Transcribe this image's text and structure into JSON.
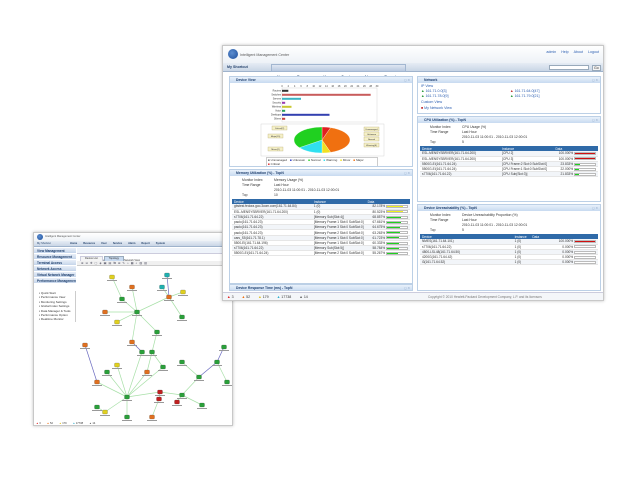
{
  "main_window": {
    "app_title": "Intelligent Management Center",
    "user_links": [
      "admin",
      "Help",
      "About",
      "Logout"
    ],
    "shortcut": "My Shortcut",
    "search_button": "Go",
    "nav_tabs": [
      "Home",
      "Resource",
      "User",
      "Service",
      "Alarm",
      "Report",
      "System"
    ],
    "device_view": {
      "title": "Device View",
      "chart_data": {
        "type": "bar",
        "orientation": "horizontal",
        "categories": [
          "Routers",
          "Switches",
          "Servers",
          "Security",
          "Wireless",
          "Voice",
          "Desktops",
          "Others"
        ],
        "values": [
          2,
          28,
          6,
          1,
          3,
          1,
          15,
          1
        ],
        "colors": [
          "#333333",
          "#c85c5c",
          "#3bb3c3",
          "#9a3bb0",
          "#c8c832",
          "#2aa05a",
          "#3340b0",
          "#c84040"
        ],
        "xlim": [
          0,
          30
        ],
        "xticks": [
          0,
          2,
          4,
          6,
          8,
          10,
          12,
          14,
          16,
          18,
          20,
          22,
          24,
          26,
          28,
          30
        ]
      },
      "pie_data": {
        "type": "pie",
        "labels": [
          "Critical",
          "Major",
          "Minor",
          "Warning",
          "Normal"
        ],
        "values": [
          5,
          40,
          5,
          15,
          35
        ],
        "colors": [
          "#e02020",
          "#f07010",
          "#f0e020",
          "#30e0f0",
          "#20d020"
        ],
        "callouts": [
          "Critical(2)",
          "Major(15)",
          "Minor(2)",
          "Unmanaged",
          "Unknown",
          "Normal",
          "Warning(6)"
        ]
      },
      "legend": [
        {
          "label": "Unmanaged",
          "color": "#666666"
        },
        {
          "label": "Unknown",
          "color": "#2030c0"
        },
        {
          "label": "Normal",
          "color": "#20d020"
        },
        {
          "label": "Warning",
          "color": "#30e0f0"
        },
        {
          "label": "Minor",
          "color": "#f0e020"
        },
        {
          "label": "Major",
          "color": "#f07010"
        },
        {
          "label": "Critical",
          "color": "#e02020"
        }
      ]
    },
    "memory": {
      "title": "Memory Utilization (%) - TopN",
      "monitor_index_label": "Monitor Index",
      "monitor_index": "Memory Usage (%)",
      "time_range_label": "Time Range",
      "time_range": "Last Hour",
      "time_span": "2010-11-03 11:00:01 - 2010-11-03 12:00:01",
      "top_label": "Top",
      "top": "10",
      "columns": [
        "Device",
        "Instance",
        "Data"
      ],
      "rows": [
        {
          "device": "gbstest.fedora.goo.3com.com(161.71.64.84)",
          "instance": "1 (0)",
          "value": "82.178%",
          "pct": 82.178,
          "color": "#f0f020"
        },
        {
          "device": "ESL-MENSYSBRVER(161.71.64.200)",
          "instance": "1 (0)",
          "value": "80.523%",
          "pct": 80.523,
          "color": "#f0f020"
        },
        {
          "device": "s7706(161.71.64.22)",
          "instance": "[Memory Sub(Slot:4)]",
          "value": "68.857%",
          "pct": 68.857,
          "color": "#20d020"
        },
        {
          "device": "paolo(161.71.64.23)",
          "instance": "[Memory Frame:1 Slot:0 SubSlot:0]",
          "value": "67.661%",
          "pct": 67.661,
          "color": "#20d020"
        },
        {
          "device": "paolo(161.71.64.23)",
          "instance": "[Memory Frame:3 Slot:0 SubSlot:0]",
          "value": "64.675%",
          "pct": 64.675,
          "color": "#20d020"
        },
        {
          "device": "paolo(161.71.64.23)",
          "instance": "[Memory Frame:2 Slot:0 SubSlot:0]",
          "value": "63.263%",
          "pct": 63.263,
          "color": "#20d020"
        },
        {
          "device": "cars_S5(161.71.78.1)",
          "instance": "[Memory Frame:1 Slot:0 SubSlot:0]",
          "value": "61.723%",
          "pct": 61.723,
          "color": "#20d020"
        },
        {
          "device": "5500-EI(161.71.64.196)",
          "instance": "[Memory Frame:1 Slot:0 SubSlot:0]",
          "value": "60.333%",
          "pct": 60.333,
          "color": "#20d020"
        },
        {
          "device": "s7706(161.71.64.22)",
          "instance": "[Memory Sub(Slot:5)]",
          "value": "58.784%",
          "pct": 58.784,
          "color": "#20d020"
        },
        {
          "device": "5500G-EI(161.71.64.24)",
          "instance": "[Memory Frame:2 Slot:0 SubSlot:0]",
          "value": "55.267%",
          "pct": 55.267,
          "color": "#20d020"
        }
      ]
    },
    "response_title": "Device Response Time (ms) - TopN",
    "network": {
      "title": "Network",
      "ip_view": "IP View",
      "subnets": [
        "161.71.0.0[3]",
        "161.71.64.0[47]",
        "161.71.78.0[9]",
        "161.71.79.0[21]"
      ],
      "custom_view": "Custom View",
      "my_view": "My Network View"
    },
    "cpu": {
      "title": "CPU Utilization (%) - TopN",
      "monitor_index_label": "Monitor Index",
      "monitor_index": "CPU Usage (%)",
      "time_range_label": "Time Range",
      "time_range": "Last Hour",
      "time_span": "2010-11-03 11:00:01 - 2010-11-03 12:00:01",
      "top_label": "Top",
      "top": "5",
      "columns": [
        "Device",
        "Instance",
        "Data"
      ],
      "rows": [
        {
          "device": "ESL-MENSYSBRVER(161.71.64.200)",
          "instance": "[CPU 2]",
          "value": "100.000%",
          "pct": 100,
          "color": "#d01010"
        },
        {
          "device": "ESL-MENSYSBRVER(161.71.64.200)",
          "instance": "[CPU 3]",
          "value": "100.000%",
          "pct": 100,
          "color": "#d01010"
        },
        {
          "device": "5500G-EI(161.71.64.24)",
          "instance": "[CPU Frame:2 Slot:0 SubSlot:0]",
          "value": "23.833%",
          "pct": 23.833,
          "color": "#20d020"
        },
        {
          "device": "5500G-EI(161.71.64.24)",
          "instance": "[CPU Frame:1 Slot:0 SubSlot:0]",
          "value": "22.000%",
          "pct": 22,
          "color": "#20d020"
        },
        {
          "device": "s7706(161.71.64.22)",
          "instance": "[CPU Sub(Slot:3)]",
          "value": "21.833%",
          "pct": 21.833,
          "color": "#20d020"
        }
      ]
    },
    "unreach": {
      "title": "Device Unreachability (%) - TopN",
      "monitor_index_label": "Monitor Index",
      "monitor_index": "Device Unreachability Proportion (%)",
      "time_range_label": "Time Range",
      "time_range": "Last Hour",
      "time_span": "2010-11-03 11:00:01 - 2010-11-03 12:00:01",
      "top_label": "Top",
      "top": "5",
      "columns": [
        "Device",
        "Instance",
        "Data"
      ],
      "rows": [
        {
          "device": "NMES(161.71.64.101)",
          "instance": "1 (0)",
          "value": "100.000%",
          "pct": 100,
          "color": "#d01010"
        },
        {
          "device": "s7706(161.71.64.22)",
          "instance": "1 (0)",
          "value": "0.000%",
          "pct": 0,
          "color": "#20d020"
        },
        {
          "device": "4800-LSL48(161.71.64.50)",
          "instance": "1 (0)",
          "value": "0.000%",
          "pct": 0,
          "color": "#20d020"
        },
        {
          "device": "4200G(161.71.64.42)",
          "instance": "1 (0)",
          "value": "0.000%",
          "pct": 0,
          "color": "#20d020"
        },
        {
          "device": "i3(161.71.64.52)",
          "instance": "1 (0)",
          "value": "0.000%",
          "pct": 0,
          "color": "#20d020"
        }
      ]
    },
    "alarm_counts": [
      {
        "count": "3",
        "color": "#e02020"
      },
      {
        "count": "52",
        "color": "#f07010"
      },
      {
        "count": "179",
        "color": "#e0c020"
      },
      {
        "count": "17738",
        "color": "#30b0d0"
      },
      {
        "count": "14",
        "color": "#666666"
      }
    ],
    "copyright": "Copyright © 2010 Hewlett-Packard Development Company, L.P. and its licensors"
  },
  "topology_window": {
    "app_title": "Intelligent Management Center",
    "shortcut": "My Shortcut",
    "nav_tabs": [
      "Home",
      "Resource",
      "User",
      "Service",
      "Alarm",
      "Report",
      "System"
    ],
    "sidebar": [
      "View Management",
      "Resource Management",
      "Terminal Access",
      "Network Access",
      "Virtual Network Manager",
      "Performance Management"
    ],
    "submenu": [
      "Quick Start",
      "Performance View",
      "Monitoring Settings",
      "Global Index Settings",
      "Data Manager & Tools",
      "Performance Option",
      "Realtime Monitor"
    ],
    "breadcrumb": "Resource > My Network View > My Network View",
    "tabs": [
      "Device List",
      "Topology"
    ],
    "alarm_counts": [
      "3",
      "52",
      "179",
      "17738",
      "14"
    ]
  }
}
